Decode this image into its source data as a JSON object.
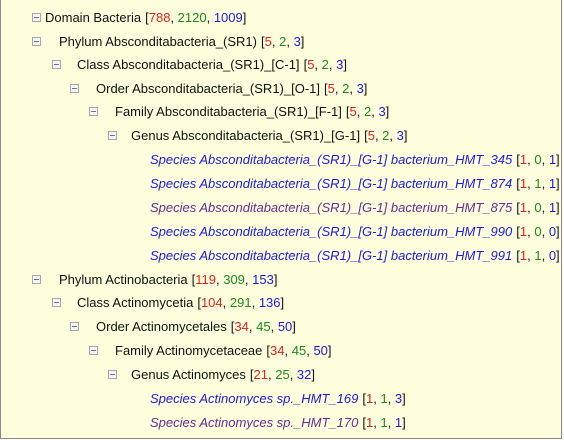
{
  "tree": [
    {
      "level": 0,
      "toggle": true,
      "kind": "rank",
      "label": "Domain Bacteria",
      "counts": [
        "788",
        "2120",
        "1009"
      ]
    },
    {
      "level": 1,
      "toggle": true,
      "kind": "rank",
      "label": "Phylum Absconditabacteria_(SR1)",
      "counts": [
        "5",
        "2",
        "3"
      ]
    },
    {
      "level": 2,
      "toggle": true,
      "kind": "rank",
      "label": "Class Absconditabacteria_(SR1)_[C-1]",
      "counts": [
        "5",
        "2",
        "3"
      ]
    },
    {
      "level": 3,
      "toggle": true,
      "kind": "rank",
      "label": "Order Absconditabacteria_(SR1)_[O-1]",
      "counts": [
        "5",
        "2",
        "3"
      ]
    },
    {
      "level": 4,
      "toggle": true,
      "kind": "rank",
      "label": "Family Absconditabacteria_(SR1)_[F-1]",
      "counts": [
        "5",
        "2",
        "3"
      ]
    },
    {
      "level": 5,
      "toggle": true,
      "kind": "rank",
      "label": "Genus Absconditabacteria_(SR1)_[G-1]",
      "counts": [
        "5",
        "2",
        "3"
      ]
    },
    {
      "level": 6,
      "toggle": false,
      "kind": "species-blue",
      "label": "Species Absconditabacteria_(SR1)_[G-1] bacterium_HMT_345",
      "counts": [
        "1",
        "0",
        "1"
      ]
    },
    {
      "level": 6,
      "toggle": false,
      "kind": "species-blue",
      "label": "Species Absconditabacteria_(SR1)_[G-1] bacterium_HMT_874",
      "counts": [
        "1",
        "1",
        "1"
      ]
    },
    {
      "level": 6,
      "toggle": false,
      "kind": "species-purple",
      "label": "Species Absconditabacteria_(SR1)_[G-1] bacterium_HMT_875",
      "counts": [
        "1",
        "0",
        "1"
      ]
    },
    {
      "level": 6,
      "toggle": false,
      "kind": "species-blue",
      "label": "Species Absconditabacteria_(SR1)_[G-1] bacterium_HMT_990",
      "counts": [
        "1",
        "0",
        "0"
      ]
    },
    {
      "level": 6,
      "toggle": false,
      "kind": "species-blue",
      "label": "Species Absconditabacteria_(SR1)_[G-1] bacterium_HMT_991",
      "counts": [
        "1",
        "1",
        "0"
      ]
    },
    {
      "level": 1,
      "toggle": true,
      "kind": "rank",
      "label": "Phylum Actinobacteria",
      "counts": [
        "119",
        "309",
        "153"
      ]
    },
    {
      "level": 2,
      "toggle": true,
      "kind": "rank",
      "label": "Class Actinomycetia",
      "counts": [
        "104",
        "291",
        "136"
      ]
    },
    {
      "level": 3,
      "toggle": true,
      "kind": "rank",
      "label": "Order Actinomycetales",
      "counts": [
        "34",
        "45",
        "50"
      ]
    },
    {
      "level": 4,
      "toggle": true,
      "kind": "rank",
      "label": "Family Actinomycetaceae",
      "counts": [
        "34",
        "45",
        "50"
      ]
    },
    {
      "level": 5,
      "toggle": true,
      "kind": "rank",
      "label": "Genus Actinomyces",
      "counts": [
        "21",
        "25",
        "32"
      ]
    },
    {
      "level": 6,
      "toggle": false,
      "kind": "species-blue",
      "label": "Species Actinomyces sp._HMT_169",
      "counts": [
        "1",
        "1",
        "3"
      ]
    },
    {
      "level": 6,
      "toggle": false,
      "kind": "species-purple",
      "label": "Species Actinomyces sp._HMT_170",
      "counts": [
        "1",
        "1",
        "1"
      ]
    }
  ],
  "colors": {
    "panel_background": "#ffffdd",
    "count_first": "#e02020",
    "count_second": "#1a8a1a",
    "count_third": "#1a1ae6",
    "species_link": "#1a1ae6",
    "species_visited": "#6b2a96"
  },
  "icons": {
    "toggle": "collapse-minus-icon"
  }
}
